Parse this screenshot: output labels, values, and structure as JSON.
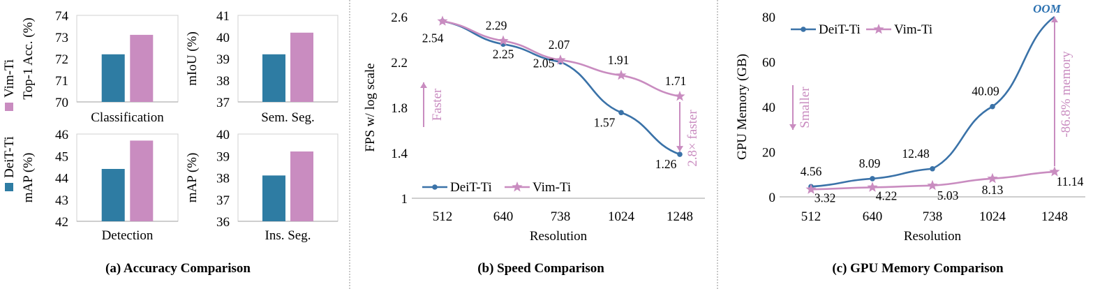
{
  "captions": {
    "a": "(a) Accuracy Comparison",
    "b": "(b) Speed Comparison",
    "c": "(c) GPU Memory Comparison"
  },
  "colors": {
    "deit": "#2e7ca3",
    "vim": "#c98cc0",
    "deit_line": "#3a72a8",
    "vim_line": "#c98cc0",
    "oom": "#2a70b0"
  },
  "legend_a": [
    "Vim-Ti",
    "DeiT-Ti"
  ],
  "chart_data": [
    {
      "type": "bar",
      "panel": "a",
      "id": "classification",
      "title": "Classification",
      "ylabel": "Top-1 Acc. (%)",
      "ylim": [
        70,
        74
      ],
      "yticks": [
        "70",
        "71",
        "72",
        "73",
        "74"
      ],
      "series": [
        {
          "name": "DeiT-Ti",
          "values": [
            72.2
          ]
        },
        {
          "name": "Vim-Ti",
          "values": [
            73.1
          ]
        }
      ]
    },
    {
      "type": "bar",
      "panel": "a",
      "id": "semseg",
      "title": "Sem. Seg.",
      "ylabel": "mIoU (%)",
      "ylim": [
        37,
        41
      ],
      "yticks": [
        "37",
        "38",
        "39",
        "40",
        "41"
      ],
      "series": [
        {
          "name": "DeiT-Ti",
          "values": [
            39.2
          ]
        },
        {
          "name": "Vim-Ti",
          "values": [
            40.2
          ]
        }
      ]
    },
    {
      "type": "bar",
      "panel": "a",
      "id": "detection",
      "title": "Detection",
      "ylabel": "mAP (%)",
      "ylim": [
        42,
        46
      ],
      "yticks": [
        "42",
        "43",
        "44",
        "45",
        "46"
      ],
      "series": [
        {
          "name": "DeiT-Ti",
          "values": [
            44.4
          ]
        },
        {
          "name": "Vim-Ti",
          "values": [
            45.7
          ]
        }
      ]
    },
    {
      "type": "bar",
      "panel": "a",
      "id": "insseg",
      "title": "Ins. Seg.",
      "ylabel": "mAP (%)",
      "ylim": [
        36,
        40
      ],
      "yticks": [
        "36",
        "37",
        "38",
        "39",
        "40"
      ],
      "series": [
        {
          "name": "DeiT-Ti",
          "values": [
            38.1
          ]
        },
        {
          "name": "Vim-Ti",
          "values": [
            39.2
          ]
        }
      ]
    },
    {
      "type": "line",
      "panel": "b",
      "id": "speed",
      "xlabel": "Resolution",
      "ylabel": "FPS w/ log scale",
      "categories": [
        "512",
        "640",
        "738",
        "1024",
        "1248"
      ],
      "ylim": [
        1,
        2.6
      ],
      "yticks": [
        "1",
        "1.4",
        "1.8",
        "2.2",
        "2.6"
      ],
      "series": [
        {
          "name": "DeiT-Ti",
          "values": [
            2.54,
            2.25,
            2.05,
            1.57,
            1.26
          ],
          "labels": [
            "",
            "2.25",
            "2.05",
            "1.57",
            "1.26"
          ]
        },
        {
          "name": "Vim-Ti",
          "values": [
            2.54,
            2.29,
            2.07,
            1.91,
            1.71
          ],
          "labels": [
            "2.54",
            "2.29",
            "2.07",
            "1.91",
            "1.71"
          ]
        }
      ],
      "annotations": {
        "arrow_label": "Faster",
        "gap_label": "2.8× faster"
      },
      "legend": [
        "DeiT-Ti",
        "Vim-Ti"
      ]
    },
    {
      "type": "line",
      "panel": "c",
      "id": "memory",
      "xlabel": "Resolution",
      "ylabel": "GPU Memory (GB)",
      "categories": [
        "512",
        "640",
        "738",
        "1024",
        "1248"
      ],
      "ylim": [
        0,
        80
      ],
      "yticks": [
        "0",
        "20",
        "40",
        "60",
        "80"
      ],
      "series": [
        {
          "name": "DeiT-Ti",
          "values": [
            4.56,
            8.09,
            12.48,
            40.09,
            80
          ],
          "labels": [
            "4.56",
            "8.09",
            "12.48",
            "40.09",
            ""
          ]
        },
        {
          "name": "Vim-Ti",
          "values": [
            3.32,
            4.22,
            5.03,
            8.13,
            11.14
          ],
          "labels": [
            "3.32",
            "4.22",
            "5.03",
            "8.13",
            "11.14"
          ]
        }
      ],
      "annotations": {
        "arrow_label": "Smaller",
        "gap_label": "-86.8% memory",
        "oom_label": "OOM"
      },
      "legend": [
        "DeiT-Ti",
        "Vim-Ti"
      ]
    }
  ]
}
